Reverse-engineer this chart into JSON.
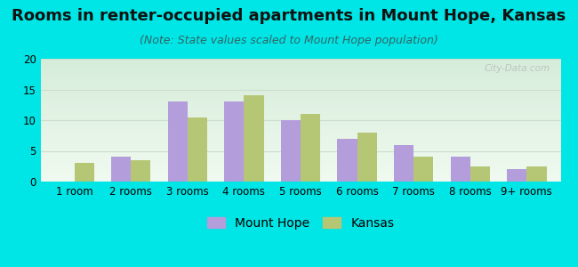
{
  "title": "Rooms in renter-occupied apartments in Mount Hope, Kansas",
  "subtitle": "(Note: State values scaled to Mount Hope population)",
  "categories": [
    "1 room",
    "2 rooms",
    "3 rooms",
    "4 rooms",
    "5 rooms",
    "6 rooms",
    "7 rooms",
    "8 rooms",
    "9+ rooms"
  ],
  "mount_hope": [
    0,
    4,
    13,
    13,
    10,
    7,
    6,
    4,
    2
  ],
  "kansas": [
    3,
    3.5,
    10.5,
    14,
    11,
    8,
    4,
    2.5,
    2.5
  ],
  "bar_color_mount_hope": "#b39ddb",
  "bar_color_kansas": "#b5c775",
  "background_color": "#00e5e5",
  "plot_bg_top": "#f0faf0",
  "plot_bg_bottom": "#d6edda",
  "grid_color": "#ccddcc",
  "ylim": [
    0,
    20
  ],
  "yticks": [
    0,
    5,
    10,
    15,
    20
  ],
  "title_fontsize": 13,
  "subtitle_fontsize": 9,
  "tick_fontsize": 8.5,
  "legend_fontsize": 10,
  "bar_width": 0.35,
  "watermark": "City-Data.com"
}
